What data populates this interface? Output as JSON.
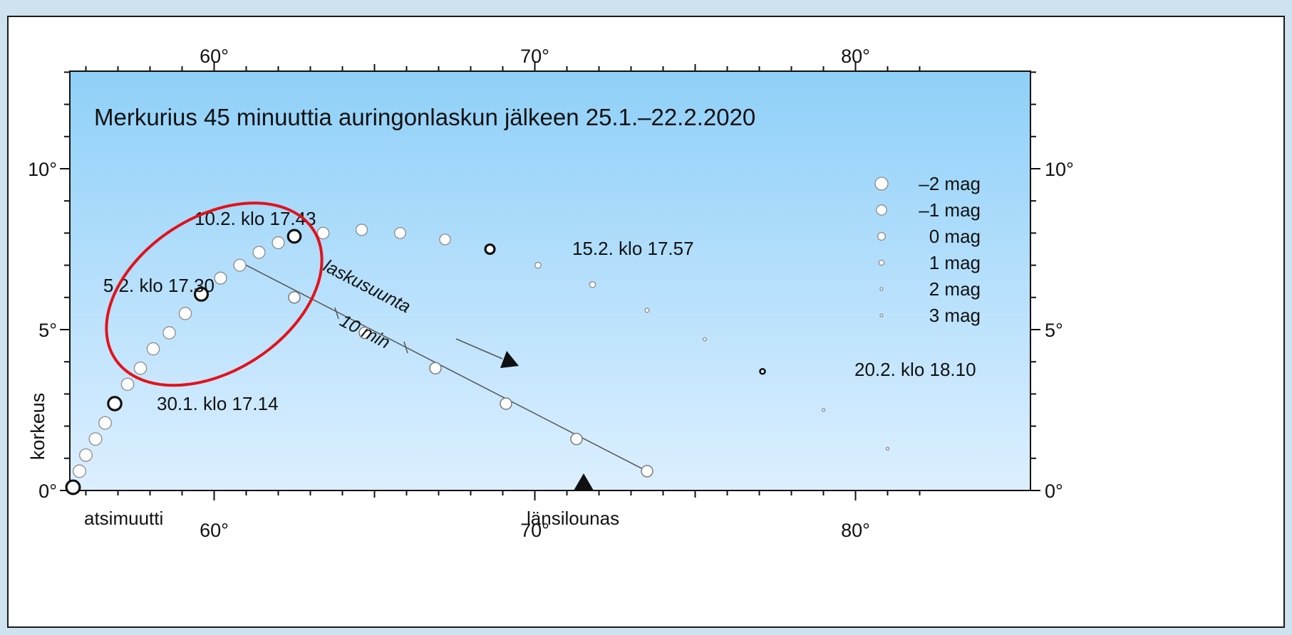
{
  "chart_data": {
    "type": "scatter",
    "title": "Merkurius 45 minuuttia auringonlaskun jälkeen 25.1.–22.2.2020",
    "xlabel": "atsimuutti",
    "ylabel": "korkeus",
    "direction_label": "länsilounas",
    "xlim": [
      54.5,
      82
    ],
    "ylim": [
      0,
      13
    ],
    "x_ticks": [
      60,
      70,
      80
    ],
    "x_tick_labels": [
      "60°",
      "70°",
      "80°"
    ],
    "y_ticks": [
      0,
      5,
      10
    ],
    "y_tick_labels": [
      "0°",
      "5°",
      "10°"
    ],
    "grid": false,
    "background_gradient": [
      "#8fd0f8",
      "#dcefff"
    ],
    "series": [
      {
        "points": [
          {
            "x": 55.6,
            "y": 0.1,
            "mag": -1.2,
            "marked": true
          },
          {
            "x": 55.8,
            "y": 0.6,
            "mag": -1.2
          },
          {
            "x": 56.0,
            "y": 1.1,
            "mag": -1.2
          },
          {
            "x": 56.3,
            "y": 1.6,
            "mag": -1.2
          },
          {
            "x": 56.6,
            "y": 2.1,
            "mag": -1.2
          },
          {
            "x": 56.9,
            "y": 2.7,
            "mag": -1.1,
            "marked": true
          },
          {
            "x": 57.3,
            "y": 3.3,
            "mag": -1.1
          },
          {
            "x": 57.7,
            "y": 3.8,
            "mag": -1.1
          },
          {
            "x": 58.1,
            "y": 4.4,
            "mag": -1.1
          },
          {
            "x": 58.6,
            "y": 4.9,
            "mag": -1.1
          },
          {
            "x": 59.1,
            "y": 5.5,
            "mag": -1.1
          },
          {
            "x": 59.6,
            "y": 6.1,
            "mag": -1.0,
            "marked": true
          },
          {
            "x": 60.2,
            "y": 6.6,
            "mag": -1.0
          },
          {
            "x": 60.8,
            "y": 7.0,
            "mag": -1.0
          },
          {
            "x": 61.4,
            "y": 7.4,
            "mag": -1.0
          },
          {
            "x": 62.0,
            "y": 7.7,
            "mag": -1.0
          },
          {
            "x": 62.5,
            "y": 7.9,
            "mag": -0.9,
            "marked": true
          },
          {
            "x": 63.4,
            "y": 8.0,
            "mag": -0.9
          },
          {
            "x": 64.6,
            "y": 8.1,
            "mag": -0.8
          },
          {
            "x": 65.8,
            "y": 8.0,
            "mag": -0.7
          },
          {
            "x": 67.2,
            "y": 7.8,
            "mag": -0.6
          },
          {
            "x": 68.6,
            "y": 7.5,
            "mag": 0.2,
            "marked": true
          },
          {
            "x": 70.1,
            "y": 7.0,
            "mag": 1.0
          },
          {
            "x": 71.8,
            "y": 6.4,
            "mag": 1.0
          },
          {
            "x": 73.5,
            "y": 5.6,
            "mag": 1.6
          },
          {
            "x": 75.3,
            "y": 4.7,
            "mag": 1.9
          },
          {
            "x": 77.1,
            "y": 3.7,
            "mag": 2.3,
            "marked": true
          },
          {
            "x": 79.0,
            "y": 2.5,
            "mag": 2.8
          },
          {
            "x": 81.0,
            "y": 1.3,
            "mag": 3.0
          }
        ]
      }
    ],
    "setting_track": [
      {
        "x": 61.0,
        "y": 7.0
      },
      {
        "x": 62.5,
        "y": 6.0
      },
      {
        "x": 64.7,
        "y": 4.9
      },
      {
        "x": 66.9,
        "y": 3.8
      },
      {
        "x": 69.1,
        "y": 2.7
      },
      {
        "x": 71.3,
        "y": 1.6
      },
      {
        "x": 73.5,
        "y": 0.6
      }
    ],
    "annotations": [
      {
        "text": "30.1. klo 17.14",
        "x": 57.0,
        "y": 2.7
      },
      {
        "text": "5.2. klo 17.30",
        "x": 59.4,
        "y": 6.45
      },
      {
        "text": "10.2. klo 17.43",
        "x": 62.3,
        "y": 8.15
      },
      {
        "text": "15.2. klo 17.57",
        "x": 68.8,
        "y": 7.55
      },
      {
        "text": "20.2. klo 18.10",
        "x": 77.3,
        "y": 3.75
      }
    ],
    "track_labels": {
      "direction": "laskusuunta",
      "interval": "10 min"
    },
    "legend": {
      "position": "right",
      "entries": [
        {
          "label": "–2 mag",
          "mag": -2
        },
        {
          "label": "–1 mag",
          "mag": -1
        },
        {
          "label": "0 mag",
          "mag": 0
        },
        {
          "label": "1 mag",
          "mag": 1
        },
        {
          "label": "2 mag",
          "mag": 2
        },
        {
          "label": "3 mag",
          "mag": 3
        }
      ]
    },
    "highlight": {
      "shape": "ellipse",
      "color": "#e3121b",
      "center": {
        "x": 60.0,
        "y": 6.1
      }
    }
  }
}
